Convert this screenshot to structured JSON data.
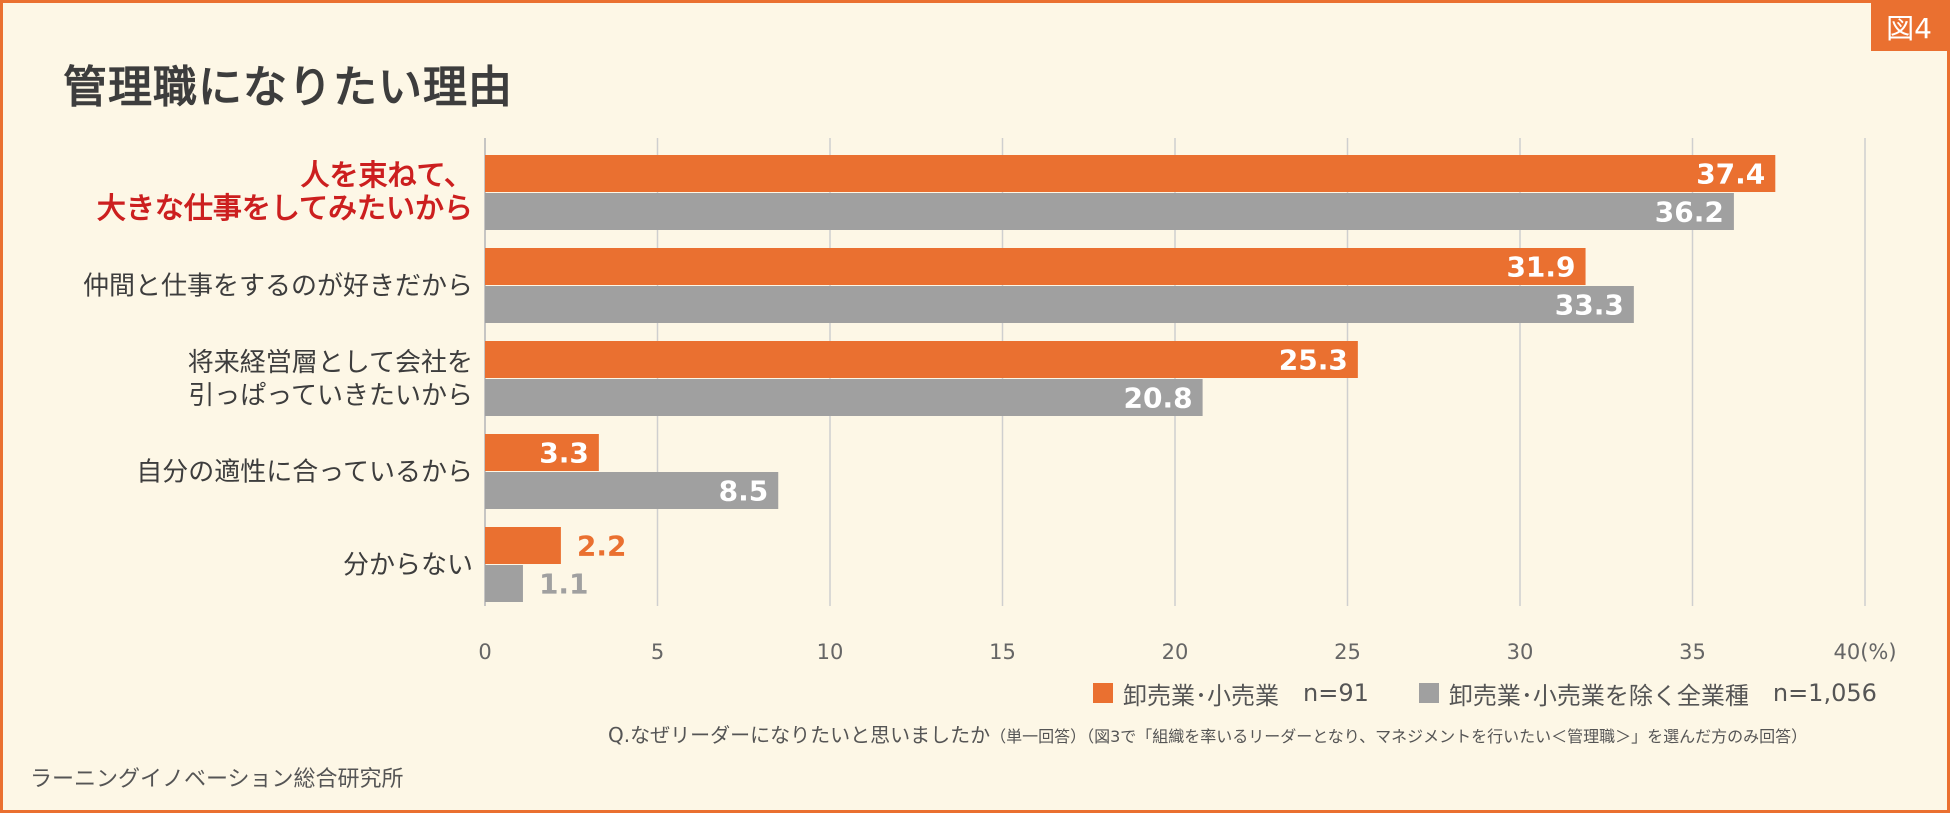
{
  "badge": "図4",
  "title": "管理職になりたい理由",
  "colors": {
    "accent": "#ea7030",
    "series1": "#ea7030",
    "series2": "#a0a0a0",
    "highlight_label": "#cc1f1f",
    "background": "#fdf7e6"
  },
  "chart_data": {
    "type": "bar",
    "orientation": "horizontal",
    "title": "管理職になりたい理由",
    "categories": [
      [
        "人を束ねて、",
        "大きな仕事をしてみたいから"
      ],
      [
        "仲間と仕事をするのが好きだから"
      ],
      [
        "将来経営層として会社を",
        "引っぱっていきたいから"
      ],
      [
        "自分の適性に合っているから"
      ],
      [
        "分からない"
      ]
    ],
    "highlighted_category_index": 0,
    "series": [
      {
        "name": "卸売業･小売業",
        "n": "n=91",
        "values": [
          37.4,
          31.9,
          25.3,
          3.3,
          2.2
        ],
        "labels": [
          "37.4",
          "31.9",
          "25.3",
          "3.3",
          "2.2"
        ]
      },
      {
        "name": "卸売業･小売業を除く全業種",
        "n": "n=1,056",
        "values": [
          36.2,
          33.3,
          20.8,
          8.5,
          1.1
        ],
        "labels": [
          "36.2",
          "33.3",
          "20.8",
          "8.5",
          "1.1"
        ]
      }
    ],
    "xlim": [
      0,
      40
    ],
    "ticks": [
      "0",
      "5",
      "10",
      "15",
      "20",
      "25",
      "30",
      "35",
      "40(%)"
    ],
    "grid": true,
    "legend_position": "bottom-right"
  },
  "legend": {
    "s1_label": "卸売業･小売業",
    "s1_n": "n=91",
    "s2_label": "卸売業･小売業を除く全業種",
    "s2_n": "n=1,056"
  },
  "question": {
    "main": "Q.なぜリーダーになりたいと思いましたか",
    "note": "（単一回答）（図3で「組織を率いるリーダーとなり、マネジメントを行いたい＜管理職＞」を選んだ方のみ回答）"
  },
  "source": "ラーニングイノベーション総合研究所"
}
